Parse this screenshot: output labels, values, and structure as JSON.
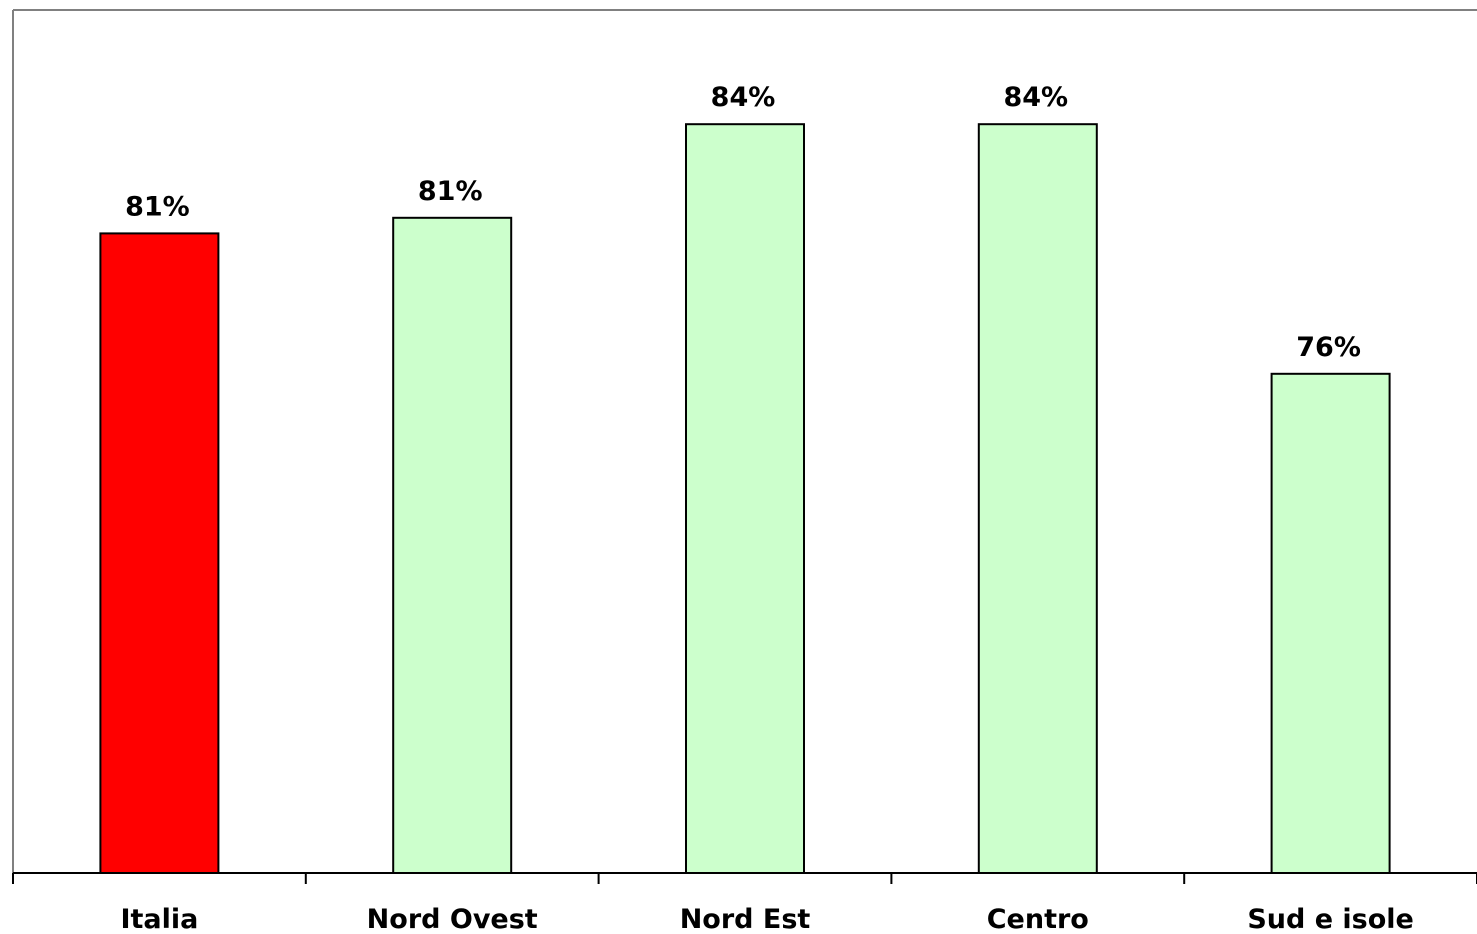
{
  "chart_data": {
    "type": "bar",
    "categories": [
      "Italia",
      "Nord Ovest",
      "Nord Est",
      "Centro",
      "Sud e isole"
    ],
    "values": [
      80.5,
      81,
      84,
      84,
      76
    ],
    "data_labels": [
      "81%",
      "81%",
      "84%",
      "84%",
      "76%"
    ],
    "ylim": [
      60,
      86.4
    ],
    "grid": false,
    "legend": "none",
    "colors": {
      "highlight": "#ff0000",
      "default": "#ccffcc",
      "bar_border": "#000000",
      "frame": "#808080",
      "axis": "#000000"
    },
    "highlight_index": 0
  }
}
